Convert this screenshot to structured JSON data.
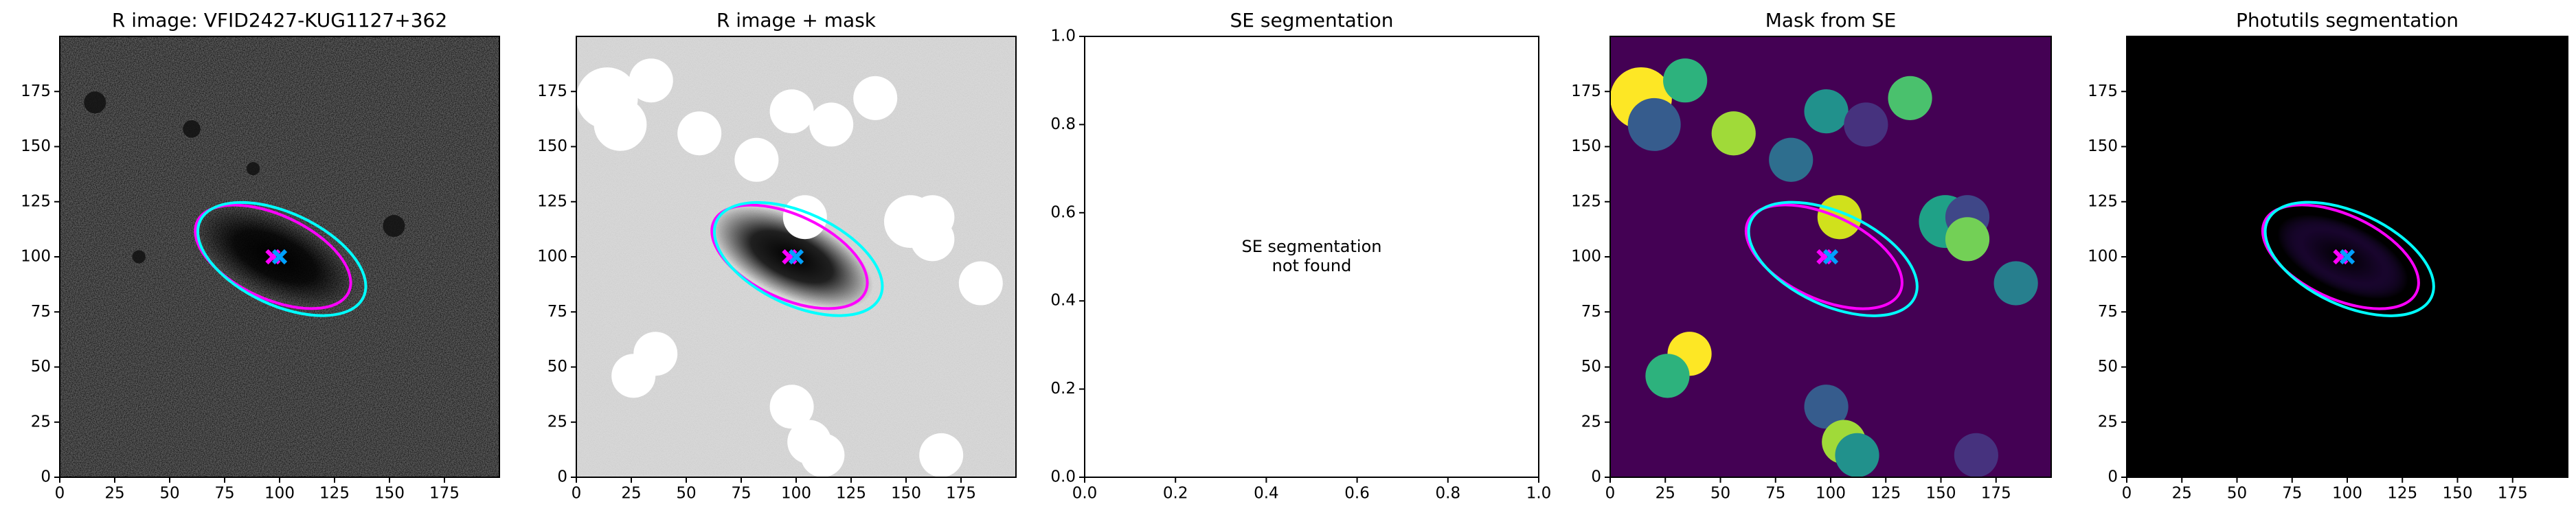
{
  "chart_data": [
    {
      "type": "image",
      "colormap": "gray",
      "title": "R image: VFID2427-KUG1127+362",
      "xlim": [
        0,
        200
      ],
      "ylim": [
        0,
        200
      ],
      "xticks": [
        0,
        25,
        50,
        75,
        100,
        125,
        150,
        175
      ],
      "yticks": [
        0,
        25,
        50,
        75,
        100,
        125,
        150,
        175
      ],
      "ellipses": [
        {
          "color": "#ff00ff",
          "x": 97,
          "y": 100,
          "width": 76,
          "height": 38,
          "angle": -25
        },
        {
          "color": "#00ffff",
          "x": 101,
          "y": 99,
          "width": 82,
          "height": 42,
          "angle": -25
        }
      ],
      "markers": [
        {
          "color": "#ff00ff",
          "x": 97,
          "y": 100
        },
        {
          "color": "#00a0ff",
          "x": 100,
          "y": 100
        }
      ]
    },
    {
      "type": "image",
      "colormap": "gray_r",
      "title": "R image + mask",
      "xlim": [
        0,
        200
      ],
      "ylim": [
        0,
        200
      ],
      "xticks": [
        0,
        25,
        50,
        75,
        100,
        125,
        150,
        175
      ],
      "yticks": [
        0,
        25,
        50,
        75,
        100,
        125,
        150,
        175
      ],
      "ellipses": [
        {
          "color": "#ff00ff",
          "x": 97,
          "y": 100,
          "width": 76,
          "height": 38,
          "angle": -25
        },
        {
          "color": "#00ffff",
          "x": 101,
          "y": 99,
          "width": 82,
          "height": 42,
          "angle": -25
        }
      ],
      "markers": [
        {
          "color": "#ff00ff",
          "x": 97,
          "y": 100
        },
        {
          "color": "#00a0ff",
          "x": 100,
          "y": 100
        }
      ]
    },
    {
      "type": "empty",
      "title": "SE segmentation",
      "xlim": [
        0,
        1
      ],
      "ylim": [
        0,
        1
      ],
      "xticks": [
        {
          "value": 0,
          "label": "0.0"
        },
        {
          "value": 0.2,
          "label": "0.2"
        },
        {
          "value": 0.4,
          "label": "0.4"
        },
        {
          "value": 0.6,
          "label": "0.6"
        },
        {
          "value": 0.8,
          "label": "0.8"
        },
        {
          "value": 1,
          "label": "1.0"
        }
      ],
      "yticks": [
        {
          "value": 0,
          "label": "0.0"
        },
        {
          "value": 0.2,
          "label": "0.2"
        },
        {
          "value": 0.4,
          "label": "0.4"
        },
        {
          "value": 0.6,
          "label": "0.6"
        },
        {
          "value": 0.8,
          "label": "0.8"
        },
        {
          "value": 1,
          "label": "1.0"
        }
      ],
      "annotation": [
        "SE segmentation",
        "not found"
      ]
    },
    {
      "type": "image",
      "colormap": "viridis",
      "title": "Mask from SE",
      "xlim": [
        0,
        200
      ],
      "ylim": [
        0,
        200
      ],
      "xticks": [
        0,
        25,
        50,
        75,
        100,
        125,
        150,
        175
      ],
      "yticks": [
        0,
        25,
        50,
        75,
        100,
        125,
        150,
        175
      ],
      "ellipses": [
        {
          "color": "#ff00ff",
          "x": 97,
          "y": 100,
          "width": 76,
          "height": 38,
          "angle": -25
        },
        {
          "color": "#00ffff",
          "x": 101,
          "y": 99,
          "width": 82,
          "height": 42,
          "angle": -25
        }
      ],
      "markers": [
        {
          "color": "#ff00ff",
          "x": 97,
          "y": 100
        },
        {
          "color": "#00a0ff",
          "x": 100,
          "y": 100
        }
      ]
    },
    {
      "type": "image",
      "colormap": "magma",
      "title": "Photutils segmentation",
      "xlim": [
        0,
        200
      ],
      "ylim": [
        0,
        200
      ],
      "xticks": [
        0,
        25,
        50,
        75,
        100,
        125,
        150,
        175
      ],
      "yticks": [
        0,
        25,
        50,
        75,
        100,
        125,
        150,
        175
      ],
      "ellipses": [
        {
          "color": "#ff00ff",
          "x": 97,
          "y": 100,
          "width": 76,
          "height": 38,
          "angle": -25
        },
        {
          "color": "#00ffff",
          "x": 101,
          "y": 99,
          "width": 82,
          "height": 42,
          "angle": -25
        }
      ],
      "markers": [
        {
          "color": "#ff00ff",
          "x": 97,
          "y": 100
        },
        {
          "color": "#00a0ff",
          "x": 100,
          "y": 100
        }
      ]
    }
  ]
}
